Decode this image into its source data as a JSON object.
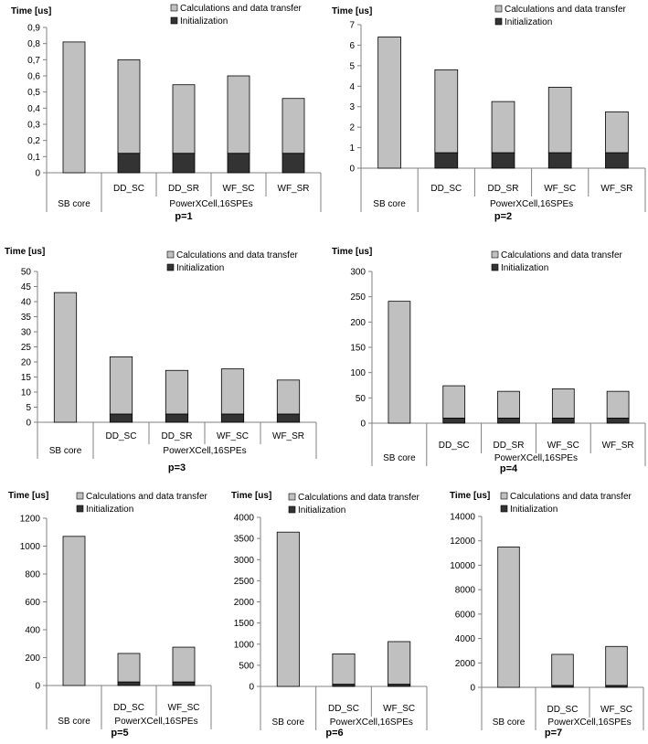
{
  "colors": {
    "calc": "#c0c0c0",
    "init": "#333333",
    "axis": "#808080",
    "outline": "#000000"
  },
  "chart_data": [
    {
      "type": "bar",
      "stacked": true,
      "ylabel": "Time [us]",
      "caption": "p=1",
      "group_label": "PowerXCell,16SPEs",
      "categories": [
        "SB core",
        "DD_SC",
        "DD_SR",
        "WF_SC",
        "WF_SR"
      ],
      "ylim": [
        0,
        0.9
      ],
      "yticks": [
        "0",
        "0,1",
        "0,2",
        "0,3",
        "0,4",
        "0,5",
        "0,6",
        "0,7",
        "0,8",
        "0,9"
      ],
      "series": [
        {
          "name": "Initialization",
          "values": [
            0,
            0.12,
            0.12,
            0.12,
            0.12
          ]
        },
        {
          "name": "Calculations and data transfer",
          "values": [
            0.81,
            0.58,
            0.425,
            0.48,
            0.34
          ]
        }
      ],
      "legend": "top-right"
    },
    {
      "type": "bar",
      "stacked": true,
      "ylabel": "Time [us]",
      "caption": "p=2",
      "group_label": "PowerXCell,16SPEs",
      "categories": [
        "SB core",
        "DD_SC",
        "DD_SR",
        "WF_SC",
        "WF_SR"
      ],
      "ylim": [
        0,
        7
      ],
      "yticks": [
        "0",
        "1",
        "2",
        "3",
        "4",
        "5",
        "6",
        "7"
      ],
      "series": [
        {
          "name": "Initialization",
          "values": [
            0,
            0.75,
            0.75,
            0.75,
            0.75
          ]
        },
        {
          "name": "Calculations and data transfer",
          "values": [
            6.4,
            4.05,
            2.5,
            3.2,
            2.0
          ]
        }
      ],
      "legend": "top-right"
    },
    {
      "type": "bar",
      "stacked": true,
      "ylabel": "Time [us]",
      "caption": "p=3",
      "group_label": "PowerXCell,16SPEs",
      "categories": [
        "SB core",
        "DD_SC",
        "DD_SR",
        "WF_SC",
        "WF_SR"
      ],
      "ylim": [
        0,
        50
      ],
      "yticks": [
        "0",
        "5",
        "10",
        "15",
        "20",
        "25",
        "30",
        "35",
        "40",
        "45",
        "50"
      ],
      "series": [
        {
          "name": "Initialization",
          "values": [
            0,
            2.7,
            2.7,
            2.7,
            2.7
          ]
        },
        {
          "name": "Calculations and data transfer",
          "values": [
            43,
            19,
            14.5,
            15,
            11.3
          ]
        }
      ],
      "legend": "top-right"
    },
    {
      "type": "bar",
      "stacked": true,
      "ylabel": "Time [us]",
      "caption": "p=4",
      "group_label": "PowerXCell,16SPEs",
      "categories": [
        "SB core",
        "DD_SC",
        "DD_SR",
        "WF_SC",
        "WF_SR"
      ],
      "ylim": [
        0,
        300
      ],
      "yticks": [
        "0",
        "50",
        "100",
        "150",
        "200",
        "250",
        "300"
      ],
      "series": [
        {
          "name": "Initialization",
          "values": [
            0,
            10,
            10,
            10,
            10
          ]
        },
        {
          "name": "Calculations and data transfer",
          "values": [
            241,
            64,
            53,
            58,
            53
          ]
        }
      ],
      "legend": "top-right"
    },
    {
      "type": "bar",
      "stacked": true,
      "ylabel": "Time [us]",
      "caption": "p=5",
      "group_label": "PowerXCell,16SPEs",
      "categories": [
        "SB core",
        "DD_SC",
        "WF_SC"
      ],
      "ylim": [
        0,
        1200
      ],
      "yticks": [
        "0",
        "200",
        "400",
        "600",
        "800",
        "1000",
        "1200"
      ],
      "series": [
        {
          "name": "Initialization",
          "values": [
            0,
            25,
            25
          ]
        },
        {
          "name": "Calculations and data transfer",
          "values": [
            1070,
            205,
            250
          ]
        }
      ],
      "legend": "top-right"
    },
    {
      "type": "bar",
      "stacked": true,
      "ylabel": "Time [us]",
      "caption": "p=6",
      "group_label": "PowerXCell,16SPEs",
      "categories": [
        "SB core",
        "DD_SC",
        "WF_SC"
      ],
      "ylim": [
        0,
        4000
      ],
      "yticks": [
        "0",
        "500",
        "1000",
        "1500",
        "2000",
        "2500",
        "3000",
        "3500",
        "4000"
      ],
      "series": [
        {
          "name": "Initialization",
          "values": [
            0,
            50,
            50
          ]
        },
        {
          "name": "Calculations and data transfer",
          "values": [
            3650,
            720,
            1010
          ]
        }
      ],
      "legend": "top-right"
    },
    {
      "type": "bar",
      "stacked": true,
      "ylabel": "Time [us]",
      "caption": "p=7",
      "group_label": "PowerXCell,16SPEs",
      "categories": [
        "SB core",
        "DD_SC",
        "WF_SC"
      ],
      "ylim": [
        0,
        14000
      ],
      "yticks": [
        "0",
        "2000",
        "4000",
        "6000",
        "8000",
        "10000",
        "12000",
        "14000"
      ],
      "series": [
        {
          "name": "Initialization",
          "values": [
            0,
            150,
            150
          ]
        },
        {
          "name": "Calculations and data transfer",
          "values": [
            11500,
            2550,
            3200
          ]
        }
      ],
      "legend": "top-right"
    }
  ]
}
